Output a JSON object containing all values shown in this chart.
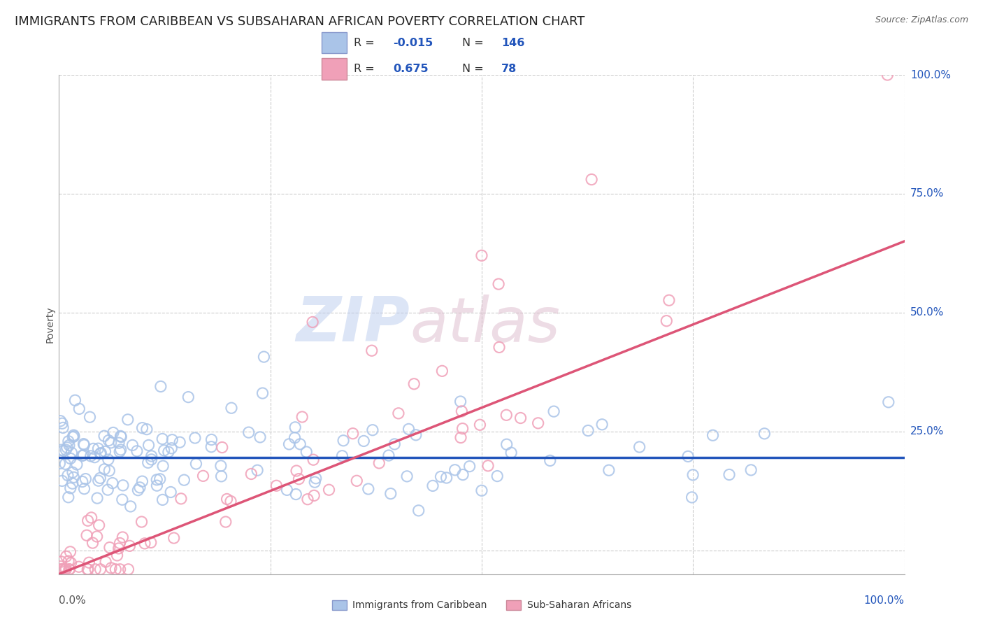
{
  "title": "IMMIGRANTS FROM CARIBBEAN VS SUBSAHARAN AFRICAN POVERTY CORRELATION CHART",
  "source": "Source: ZipAtlas.com",
  "ylabel": "Poverty",
  "watermark_zip": "ZIP",
  "watermark_atlas": "atlas",
  "legend_labels": [
    "Immigrants from Caribbean",
    "Sub-Saharan Africans"
  ],
  "blue_R": -0.015,
  "blue_N": 146,
  "pink_R": 0.675,
  "pink_N": 78,
  "blue_color": "#aac4e8",
  "pink_color": "#f0a0b8",
  "blue_line_color": "#2255bb",
  "pink_line_color": "#dd5577",
  "xlim": [
    0,
    1
  ],
  "ylim": [
    -0.05,
    1.0
  ],
  "ytick_vals": [
    0,
    0.25,
    0.5,
    0.75,
    1.0
  ],
  "ytick_labels": [
    "",
    "25.0%",
    "50.0%",
    "75.0%",
    "100.0%"
  ],
  "background_color": "#ffffff",
  "grid_color": "#cccccc",
  "title_fontsize": 13,
  "label_fontsize": 10,
  "tick_fontsize": 11,
  "seed": 42,
  "blue_intercept": 0.195,
  "blue_slope": 0.0,
  "pink_intercept": -0.05,
  "pink_slope": 0.7
}
